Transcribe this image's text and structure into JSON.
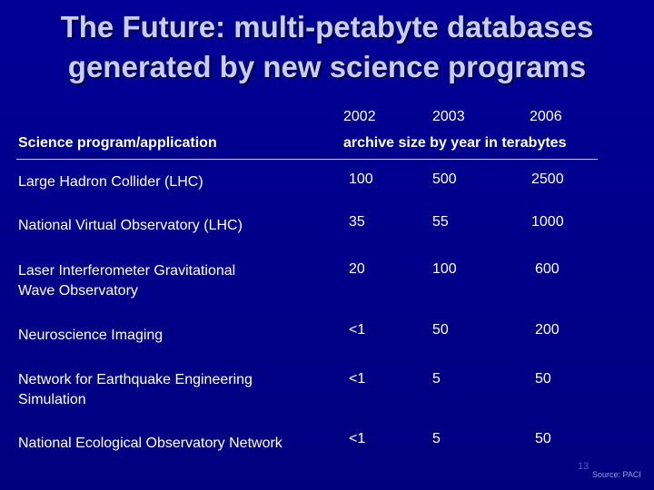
{
  "title": {
    "line1": "The Future: multi-petabyte databases",
    "line2": "generated by new science programs"
  },
  "table": {
    "years": [
      "2002",
      "2003",
      "2006"
    ],
    "header_program": "Science program/application",
    "header_archive": "archive size by year in terabytes",
    "rows": [
      {
        "name_line1": "Large Hadron Collider (LHC)",
        "name_line2": "",
        "values": [
          "100",
          "500",
          "2500"
        ]
      },
      {
        "name_line1": "National Virtual Observatory (LHC)",
        "name_line2": "",
        "values": [
          "35",
          "55",
          "1000"
        ]
      },
      {
        "name_line1": "Laser Interferometer Gravitational",
        "name_line2": "Wave Observatory",
        "values": [
          "20",
          "100",
          "600"
        ]
      },
      {
        "name_line1": "Neuroscience Imaging",
        "name_line2": "",
        "values": [
          "<1",
          "50",
          "200"
        ]
      },
      {
        "name_line1": "Network for Earthquake Engineering",
        "name_line2": "Simulation",
        "values": [
          "<1",
          "5",
          "50"
        ]
      },
      {
        "name_line1": "National Ecological Observatory Network",
        "name_line2": "",
        "values": [
          "<1",
          "5",
          "50"
        ]
      }
    ]
  },
  "footer": {
    "slide_number": "13",
    "source": "Source: PACI"
  }
}
